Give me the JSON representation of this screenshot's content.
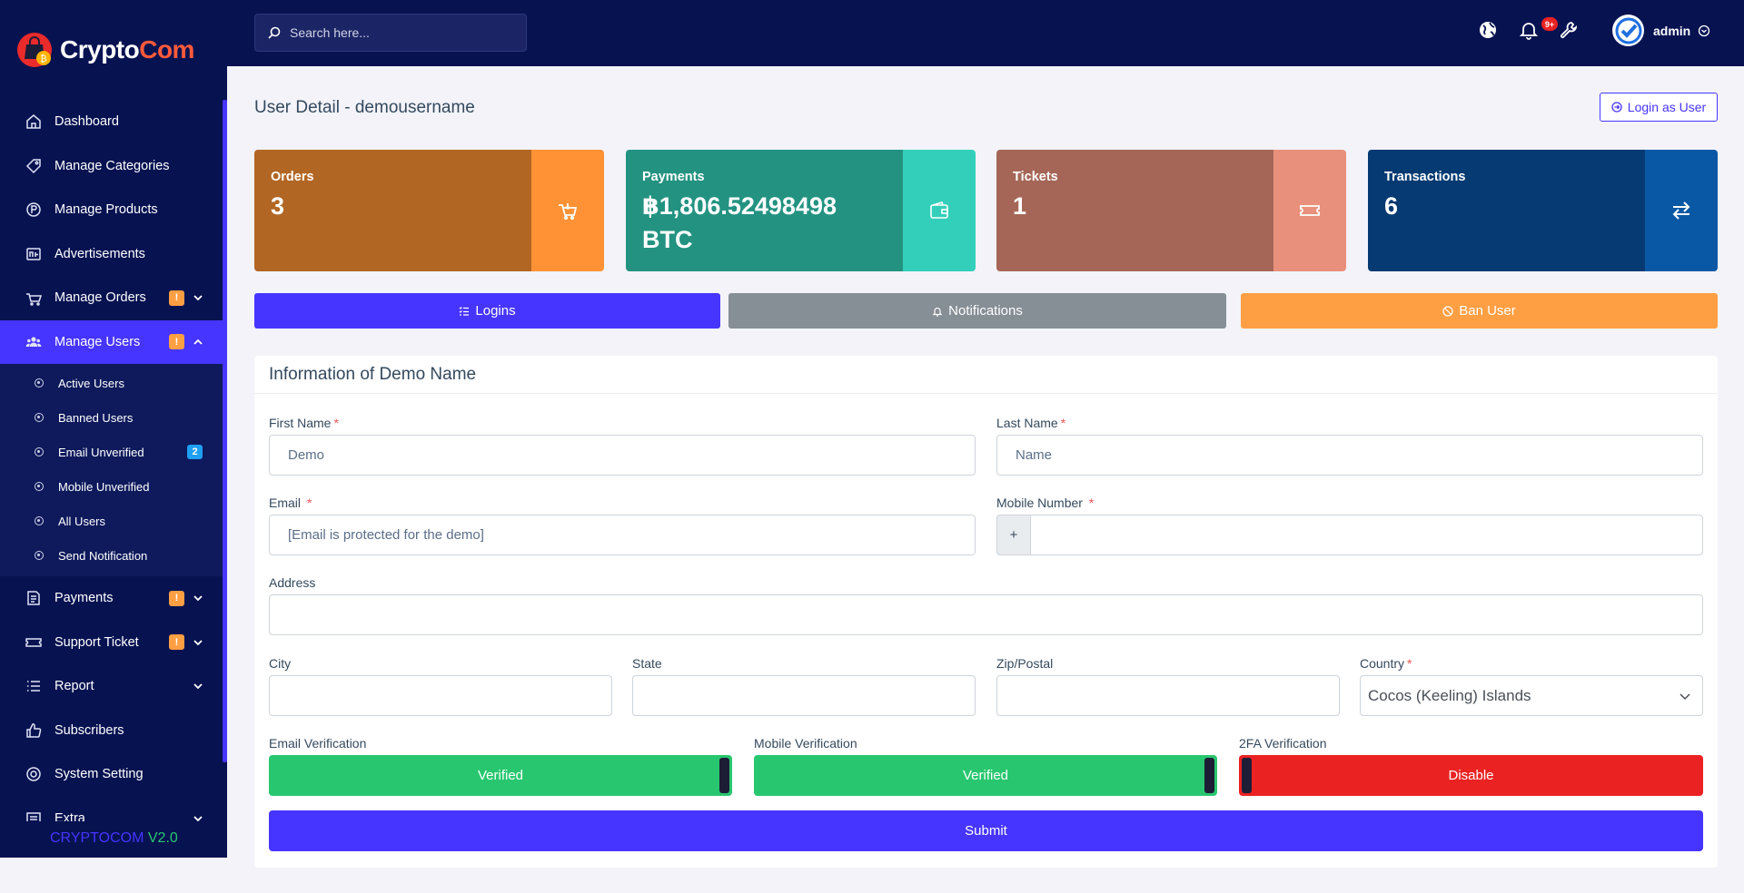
{
  "brand": {
    "part1": "Crypto",
    "part2": "Com"
  },
  "sidebar": {
    "items": [
      {
        "label": "Dashboard",
        "icon": "home-icon"
      },
      {
        "label": "Manage Categories",
        "icon": "tag-icon"
      },
      {
        "label": "Manage Products",
        "icon": "product-icon"
      },
      {
        "label": "Advertisements",
        "icon": "ad-icon"
      },
      {
        "label": "Manage Orders",
        "icon": "cart-icon",
        "badge": "!"
      },
      {
        "label": "Manage Users",
        "icon": "users-icon",
        "badge": "!"
      },
      {
        "label": "Payments",
        "icon": "payment-icon",
        "badge": "!"
      },
      {
        "label": "Support Ticket",
        "icon": "ticket-icon",
        "badge": "!"
      },
      {
        "label": "Report",
        "icon": "list-icon"
      },
      {
        "label": "Subscribers",
        "icon": "thumbs-up-icon"
      },
      {
        "label": "System Setting",
        "icon": "settings-icon"
      },
      {
        "label": "Extra",
        "icon": "extra-icon"
      }
    ],
    "subitems": [
      {
        "label": "Active Users"
      },
      {
        "label": "Banned Users"
      },
      {
        "label": "Email Unverified",
        "count": "2"
      },
      {
        "label": "Mobile Unverified"
      },
      {
        "label": "All Users"
      },
      {
        "label": "Send Notification"
      }
    ],
    "version": {
      "name": "CRYPTOCOM",
      "number": "V2.0"
    }
  },
  "topbar": {
    "search_placeholder": "Search here...",
    "notif_count": "9+",
    "username": "admin"
  },
  "page": {
    "title": "User Detail - demousername",
    "login_as_user": "Login as User"
  },
  "stats": [
    {
      "label": "Orders",
      "value": "3",
      "color_main": "#b26624",
      "color_side": "#ff9234",
      "icon": "cart-icon"
    },
    {
      "label": "Payments",
      "value": "฿1,806.52498498 BTC",
      "color_main": "#239281",
      "color_side": "#33cfba",
      "icon": "wallet-icon"
    },
    {
      "label": "Tickets",
      "value": "1",
      "color_main": "#a56657",
      "color_side": "#e8907b",
      "icon": "ticket-icon"
    },
    {
      "label": "Transactions",
      "value": "6",
      "color_main": "#053a72",
      "color_side": "#0958a5",
      "icon": "exchange-icon"
    }
  ],
  "actions": {
    "logins": "Logins",
    "notifications": "Notifications",
    "ban_user": "Ban User"
  },
  "form": {
    "title": "Information of Demo Name",
    "first_name_label": "First Name",
    "first_name_value": "Demo",
    "last_name_label": "Last Name",
    "last_name_value": "Name",
    "email_label": "Email",
    "email_value": "[Email is protected for the demo]",
    "mobile_label": "Mobile Number",
    "mobile_prefix": "+",
    "mobile_value": "",
    "address_label": "Address",
    "address_value": "",
    "city_label": "City",
    "city_value": "",
    "state_label": "State",
    "state_value": "",
    "zip_label": "Zip/Postal",
    "zip_value": "",
    "country_label": "Country",
    "country_value": "Cocos (Keeling) Islands",
    "email_verification_label": "Email Verification",
    "email_verification_value": "Verified",
    "mobile_verification_label": "Mobile Verification",
    "mobile_verification_value": "Verified",
    "twofa_label": "2FA Verification",
    "twofa_value": "Disable",
    "submit": "Submit",
    "required_mark": "*"
  },
  "colors": {
    "sidebar_bg": "#071251",
    "accent": "#4634ff",
    "verified": "#28c76f",
    "disabled": "#ea2222",
    "warning": "#ff9f43",
    "secondary": "#868e96"
  }
}
